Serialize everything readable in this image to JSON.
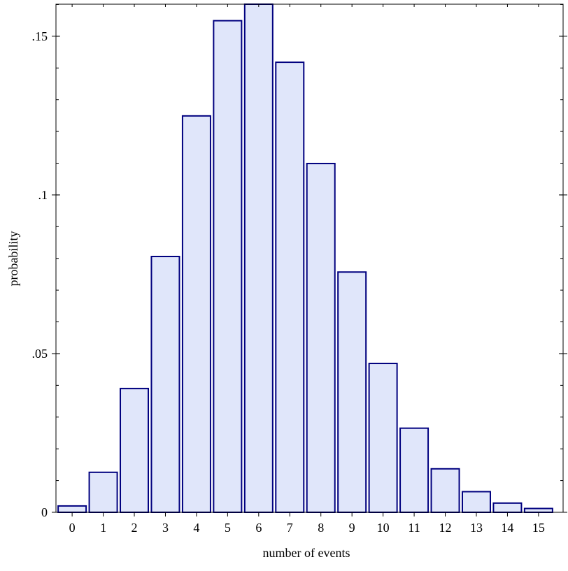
{
  "chart_data": {
    "type": "bar",
    "title": "",
    "xlabel": "number of events",
    "ylabel": "probability",
    "categories": [
      "0",
      "1",
      "2",
      "3",
      "4",
      "5",
      "6",
      "7",
      "8",
      "9",
      "10",
      "11",
      "12",
      "13",
      "14",
      "15"
    ],
    "values": [
      0.002,
      0.0126,
      0.039,
      0.0806,
      0.1249,
      0.1549,
      0.1601,
      0.1418,
      0.1099,
      0.0757,
      0.0469,
      0.0265,
      0.0137,
      0.0065,
      0.0029,
      0.0012
    ],
    "xlim": [
      -0.52,
      15.79
    ],
    "ylim": [
      0,
      0.1601
    ],
    "y_major_ticks": [
      0,
      0.05,
      0.1,
      0.15
    ],
    "y_tick_labels": [
      "0",
      ".05",
      ".1",
      ".15"
    ],
    "y_minor_step": 0.01,
    "grid": false,
    "bar_fill": "#e0e6fa",
    "bar_stroke": "#00007f"
  }
}
